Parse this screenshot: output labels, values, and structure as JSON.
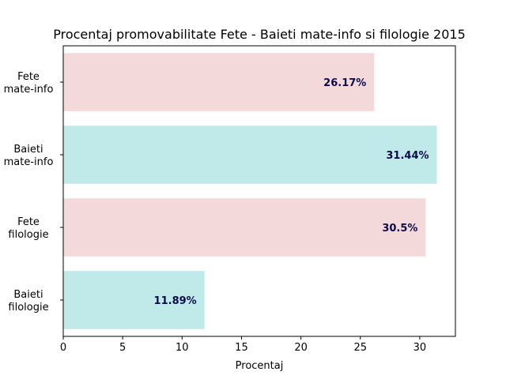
{
  "chart_data": {
    "type": "bar",
    "orientation": "horizontal",
    "title": "Procentaj promovabilitate Fete - Baieti mate-info si filologie 2015",
    "xlabel": "Procentaj",
    "ylabel": "",
    "categories": [
      [
        "Fete",
        "mate-info"
      ],
      [
        "Baieti",
        "mate-info"
      ],
      [
        "Fete",
        "filologie"
      ],
      [
        "Baieti",
        "filologie"
      ]
    ],
    "values": [
      26.17,
      31.44,
      30.5,
      11.89
    ],
    "value_labels": [
      "26.17%",
      "31.44%",
      "30.5%",
      "11.89%"
    ],
    "bar_colors": [
      "#f4d9da",
      "#bfeae9",
      "#f4d9da",
      "#bfeae9"
    ],
    "label_color": "#0b0b4a",
    "xlim": [
      0,
      33
    ],
    "xticks": [
      0,
      5,
      10,
      15,
      20,
      25,
      30
    ],
    "grid": false,
    "legend": false
  }
}
